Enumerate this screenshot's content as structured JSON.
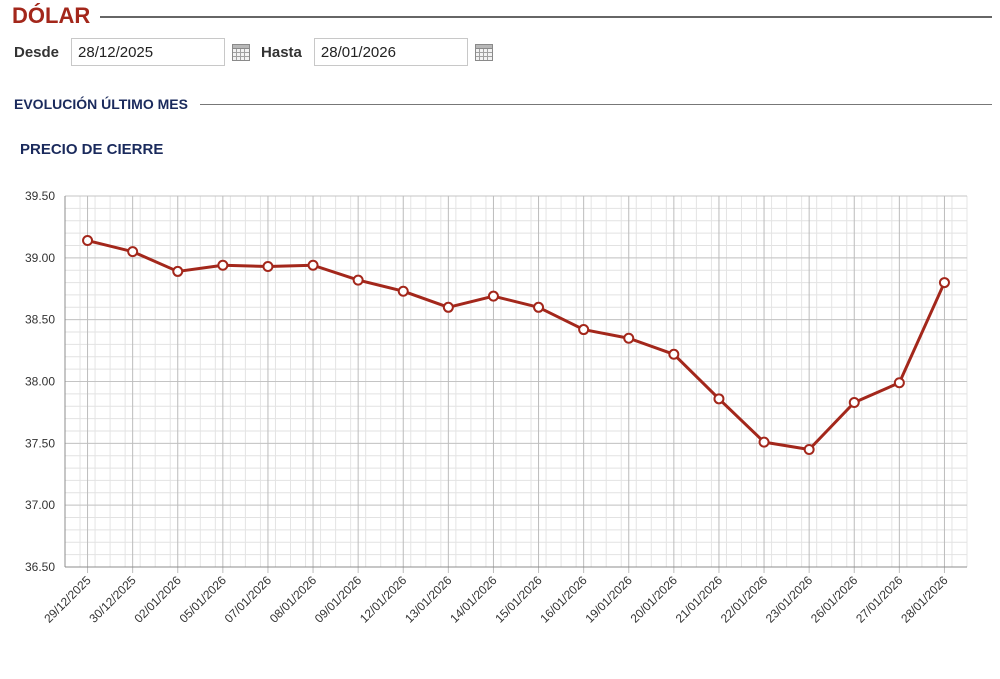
{
  "header": {
    "title": "DÓLAR"
  },
  "filters": {
    "from_label": "Desde",
    "from_value": "28/12/2025",
    "to_label": "Hasta",
    "to_value": "28/01/2026",
    "calendar_icon": "calendar-icon"
  },
  "section": {
    "title": "EVOLUCIÓN ÚLTIMO MES"
  },
  "colors": {
    "title_red": "#a3271b",
    "navy": "#1a2a5c",
    "line": "#a3271b",
    "grid": "#d6d6d6"
  },
  "chart_data": {
    "type": "line",
    "title": "PRECIO DE CIERRE",
    "xlabel": "",
    "ylabel": "",
    "ylim": [
      36.5,
      39.5
    ],
    "yticks": [
      "36.50",
      "37.00",
      "37.50",
      "38.00",
      "38.50",
      "39.00",
      "39.50"
    ],
    "grid": true,
    "categories": [
      "29/12/2025",
      "30/12/2025",
      "02/01/2026",
      "05/01/2026",
      "07/01/2026",
      "08/01/2026",
      "09/01/2026",
      "12/01/2026",
      "13/01/2026",
      "14/01/2026",
      "15/01/2026",
      "16/01/2026",
      "19/01/2026",
      "20/01/2026",
      "21/01/2026",
      "22/01/2026",
      "23/01/2026",
      "26/01/2026",
      "27/01/2026",
      "28/01/2026"
    ],
    "values": [
      39.14,
      39.05,
      38.89,
      38.94,
      38.93,
      38.94,
      38.82,
      38.73,
      38.6,
      38.69,
      38.6,
      38.42,
      38.35,
      38.22,
      37.86,
      37.51,
      37.45,
      37.83,
      37.99,
      38.8
    ]
  }
}
